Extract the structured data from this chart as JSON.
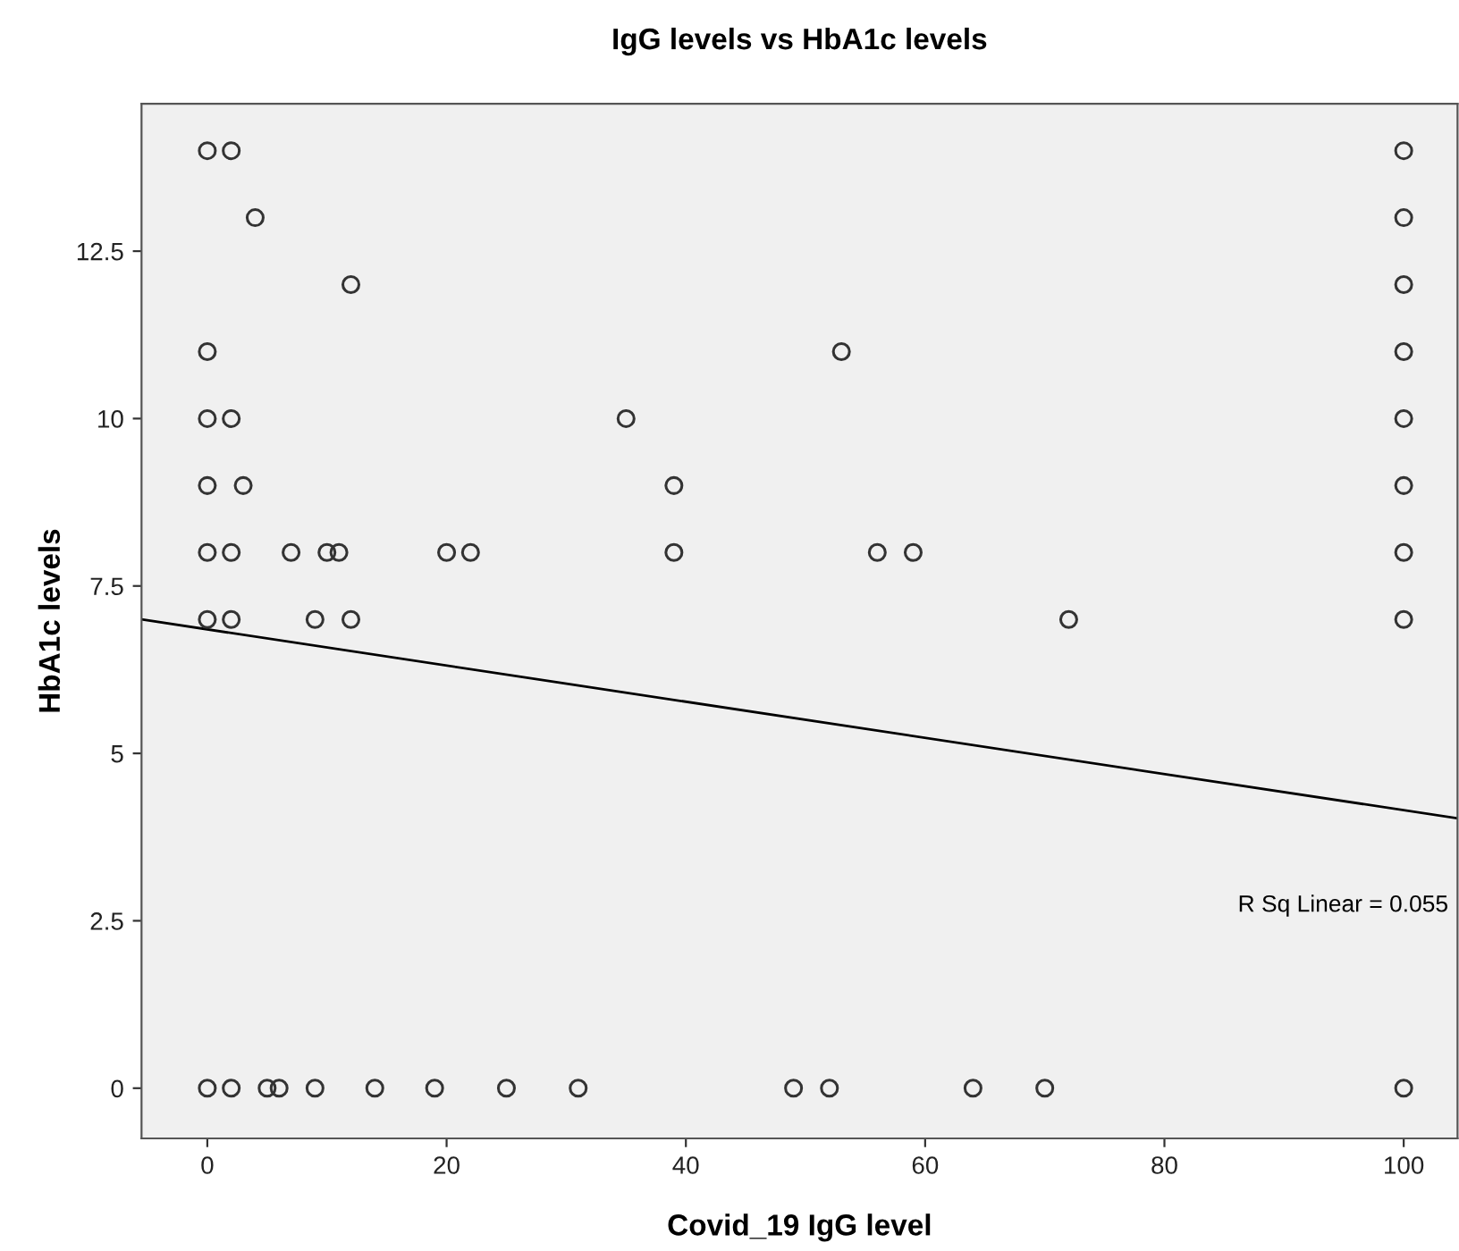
{
  "chart_data": {
    "type": "scatter",
    "title": "IgG levels vs HbA1c levels",
    "xlabel": "Covid_19 IgG level",
    "ylabel": "HbA1c levels",
    "xlim": [
      -5.5,
      104.5
    ],
    "ylim": [
      -0.75,
      14.7
    ],
    "xticks": [
      0,
      20,
      40,
      60,
      80,
      100
    ],
    "yticks": [
      0,
      2.5,
      5,
      7.5,
      10,
      12.5
    ],
    "grid": false,
    "marker": "circle",
    "series": [
      {
        "color": "#333333",
        "x": [
          0,
          2,
          100,
          4,
          100,
          12,
          100,
          0,
          53,
          100,
          0,
          2,
          35,
          100,
          0,
          3,
          39,
          100,
          0,
          2,
          7,
          10,
          11,
          20,
          22,
          39,
          56,
          59,
          100,
          0,
          2,
          9,
          12,
          72,
          100,
          0,
          2,
          5,
          6,
          9,
          14,
          19,
          25,
          31,
          49,
          52,
          64,
          70,
          100
        ],
        "values": [
          14,
          14,
          14,
          13,
          13,
          12,
          12,
          11,
          11,
          11,
          10,
          10,
          10,
          10,
          9,
          9,
          9,
          9,
          8,
          8,
          8,
          8,
          8,
          8,
          8,
          8,
          8,
          8,
          8,
          7,
          7,
          7,
          7,
          7,
          7,
          0,
          0,
          0,
          0,
          0,
          0,
          0,
          0,
          0,
          0,
          0,
          0,
          0,
          0
        ]
      },
      {
        "type": "line",
        "color": "#000000",
        "x": [
          -5.5,
          104.5
        ],
        "values": [
          7.0,
          4.03
        ],
        "marker": "none"
      }
    ],
    "annotations": [
      "R Sq Linear = 0.055"
    ]
  }
}
